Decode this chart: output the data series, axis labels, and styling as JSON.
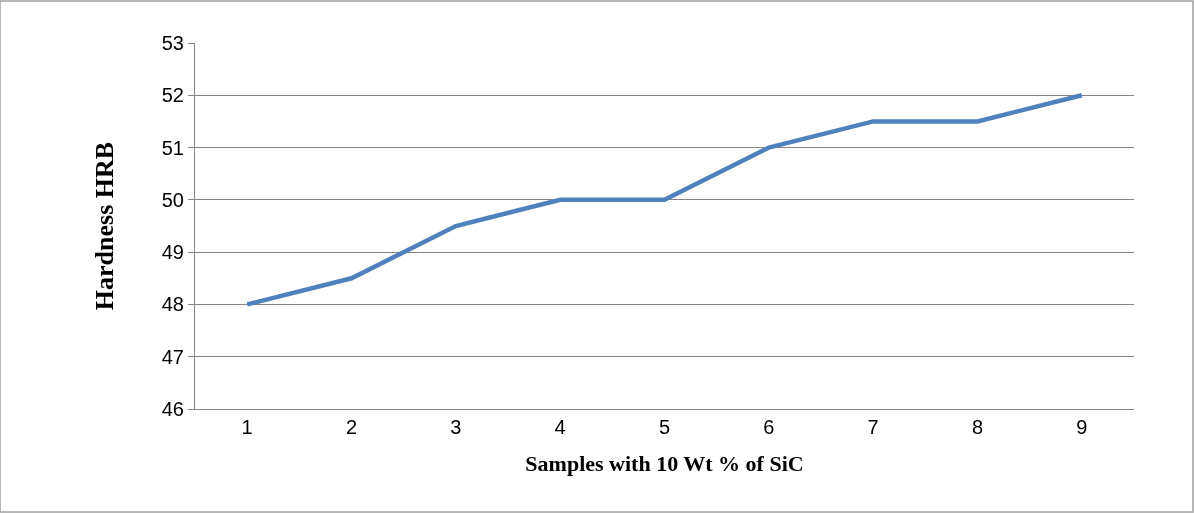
{
  "chart_data": {
    "type": "line",
    "xlabel": "Samples with 10 Wt % of SiC",
    "ylabel": "Hardness HRB",
    "categories": [
      "1",
      "2",
      "3",
      "4",
      "5",
      "6",
      "7",
      "8",
      "9"
    ],
    "series": [
      {
        "color": "#4f81bd",
        "values": [
          48,
          48.5,
          49.5,
          50,
          50,
          51,
          51.5,
          51.5,
          52
        ]
      }
    ],
    "ylim": [
      46,
      53
    ],
    "yticks": [
      46,
      47,
      48,
      49,
      50,
      51,
      52,
      53
    ],
    "grid": "y",
    "marker": "none",
    "line_style": "solid"
  }
}
